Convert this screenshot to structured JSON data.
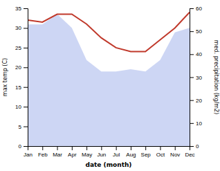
{
  "chart_data": {
    "type": "line",
    "categories": [
      "Jan",
      "Feb",
      "Mar",
      "Apr",
      "May",
      "Jun",
      "Jul",
      "Aug",
      "Sep",
      "Oct",
      "Nov",
      "Dec"
    ],
    "xlabel": "date (month)",
    "ylabel": "max temp (C)",
    "y2label": "med. precipitation (kg/m2)",
    "series": [
      {
        "type": "area",
        "axis": "y2",
        "color": "#b8c4f0",
        "values": [
          53.0,
          53.0,
          57.5,
          51.5,
          37.5,
          32.5,
          32.5,
          33.5,
          32.5,
          37.5,
          49.5,
          51.5
        ]
      },
      {
        "type": "line",
        "color": "#c0392b",
        "values": [
          32.0,
          31.5,
          33.5,
          33.5,
          31.0,
          27.5,
          25.0,
          24.0,
          24.0,
          27.0,
          30.0,
          34.0
        ]
      }
    ],
    "ylim": [
      0,
      35
    ],
    "yticks": [
      0,
      5,
      10,
      15,
      20,
      25,
      30,
      35
    ],
    "y2lim": [
      0,
      60
    ],
    "y2ticks": [
      0,
      10,
      20,
      30,
      40,
      50,
      60
    ],
    "grid": false
  }
}
